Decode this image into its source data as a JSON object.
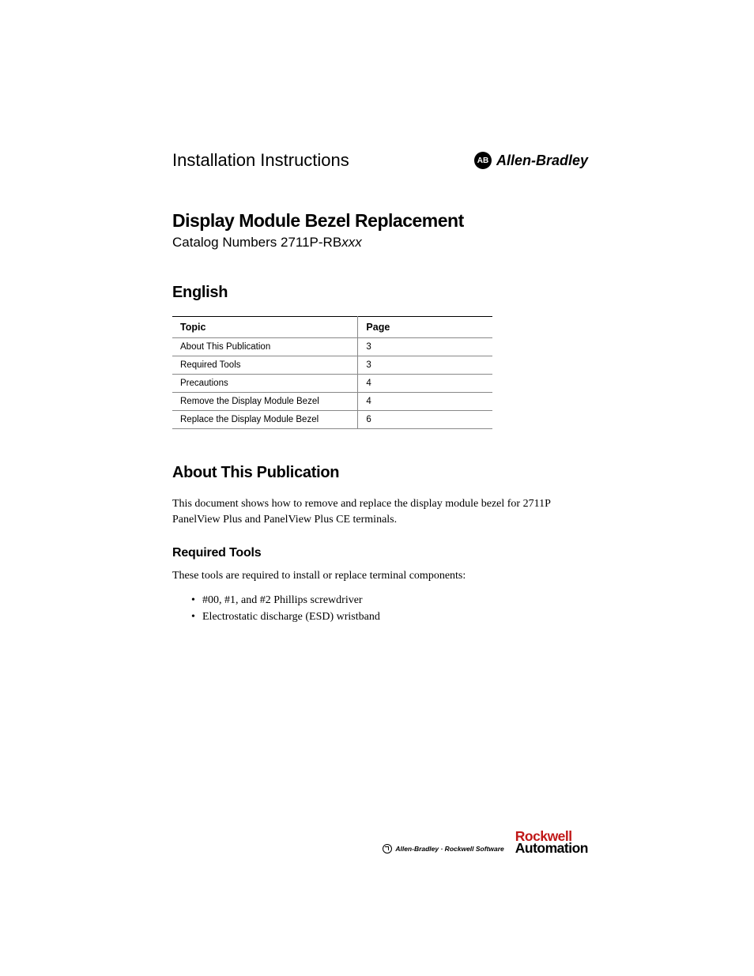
{
  "header": {
    "doc_type": "Installation Instructions",
    "brand_icon": "AB",
    "brand_text": "Allen-Bradley"
  },
  "title": {
    "main": "Display Module Bezel Replacement",
    "catalog_prefix": "Catalog Numbers 2711P-RB",
    "catalog_suffix": "xxx"
  },
  "language_heading": "English",
  "toc": {
    "col_topic": "Topic",
    "col_page": "Page",
    "rows": [
      {
        "topic": "About This Publication",
        "page": "3"
      },
      {
        "topic": "Required Tools",
        "page": "3"
      },
      {
        "topic": "Precautions",
        "page": "4"
      },
      {
        "topic": "Remove the Display Module Bezel",
        "page": "4"
      },
      {
        "topic": "Replace the Display Module Bezel",
        "page": "6"
      }
    ]
  },
  "about": {
    "heading": "About This Publication",
    "body": "This document shows how to remove and replace the display module bezel for 2711P PanelView Plus and PanelView Plus CE terminals."
  },
  "tools": {
    "heading": "Required Tools",
    "intro": "These tools are required to install or replace terminal components:",
    "items": [
      "#00, #1, and #2 Phillips screwdriver",
      "Electrostatic discharge (ESD) wristband"
    ]
  },
  "footer": {
    "brands_text": "Allen-Bradley  ·  Rockwell Software",
    "rockwell_line1": "Rockwell",
    "rockwell_line2": "Automation"
  },
  "colors": {
    "rockwell_red": "#c01818",
    "border_grey": "#888888",
    "black": "#000000"
  },
  "typography": {
    "body_font": "Georgia",
    "heading_font": "Helvetica Neue",
    "main_title_size": 23,
    "section_heading_size": 20,
    "sub_heading_size": 16,
    "body_size": 14,
    "table_size": 12
  }
}
